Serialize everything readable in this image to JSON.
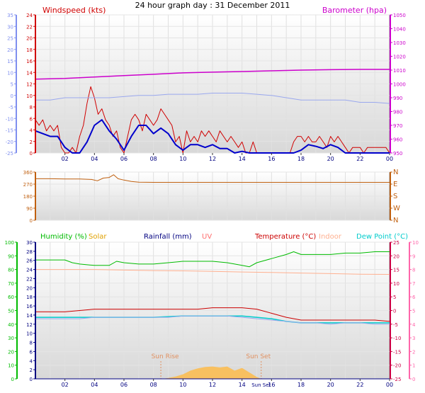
{
  "title": "24 hour graph day : 31 December 2011",
  "colors": {
    "windspeed": "#d00000",
    "wind_avg": "#0000cc",
    "barometer": "#cc00cc",
    "chill_axis": "#7f8fef",
    "chill_line": "#9aa8ee",
    "wind_dir": "#c06010",
    "humidity": "#00bb00",
    "solar": "#e0a000",
    "solar_fill": "#f8c060",
    "rainfall": "#000080",
    "uv": "#ff7070",
    "temperature": "#cc0000",
    "indoor": "#ffb090",
    "dew_point": "#00cccc",
    "temp_axis": "#cc0044",
    "uv_axis": "#ff66aa",
    "sun_marker": "#e09060"
  },
  "chart_data": [
    {
      "type": "line",
      "panel": "wind_pressure",
      "x_unit": "hour of day",
      "x_ticks": [
        "02",
        "04",
        "06",
        "08",
        "10",
        "12",
        "14",
        "16",
        "18",
        "20",
        "22",
        "00"
      ],
      "xlim": [
        0,
        24
      ],
      "left_axis": {
        "label": "Windspeed (kts)",
        "ticks": [
          "0",
          "2",
          "4",
          "6",
          "8",
          "10",
          "12",
          "14",
          "16",
          "18",
          "20",
          "22",
          "24"
        ],
        "ylim": [
          0,
          25
        ]
      },
      "left_outer_axis": {
        "ticks": [
          "-25",
          "-20",
          "-15",
          "-10",
          "-5",
          "0",
          "5",
          "10",
          "15",
          "20",
          "25",
          "30",
          "35"
        ],
        "ylim": [
          -25,
          35
        ]
      },
      "right_axis": {
        "label": "Barometer (hpa)",
        "ticks": [
          "950",
          "960",
          "970",
          "980",
          "990",
          "1000",
          "1010",
          "1020",
          "1030",
          "1040",
          "1050"
        ],
        "ylim": [
          950,
          1050
        ]
      },
      "grid": true,
      "series": [
        {
          "key": "gust",
          "axis": "left",
          "color_key": "windspeed",
          "x": [
            0,
            0.25,
            0.5,
            0.75,
            1,
            1.25,
            1.5,
            1.75,
            2,
            2.25,
            2.5,
            2.75,
            3,
            3.25,
            3.5,
            3.75,
            4,
            4.25,
            4.5,
            4.75,
            5,
            5.25,
            5.5,
            5.75,
            6,
            6.25,
            6.5,
            6.75,
            7,
            7.25,
            7.5,
            7.75,
            8,
            8.25,
            8.5,
            8.75,
            9,
            9.25,
            9.5,
            9.75,
            10,
            10.25,
            10.5,
            10.75,
            11,
            11.25,
            11.5,
            11.75,
            12,
            12.25,
            12.5,
            12.75,
            13,
            13.25,
            13.5,
            13.75,
            14,
            14.25,
            14.5,
            14.75,
            15,
            15.25,
            15.5,
            15.75,
            16,
            16.25,
            16.5,
            16.75,
            17,
            17.25,
            17.5,
            17.75,
            18,
            18.25,
            18.5,
            18.75,
            19,
            19.25,
            19.5,
            19.75,
            20,
            20.25,
            20.5,
            20.75,
            21,
            21.25,
            21.5,
            21.75,
            22,
            22.25,
            22.5,
            22.75,
            23,
            23.25,
            23.5,
            23.75,
            24
          ],
          "values": [
            6,
            5,
            6,
            4,
            5,
            4,
            5,
            1,
            0,
            0,
            1,
            0,
            3,
            5,
            9,
            12,
            10,
            7,
            8,
            6,
            5,
            3,
            4,
            1,
            0,
            3,
            6,
            7,
            6,
            4,
            7,
            6,
            5,
            6,
            8,
            7,
            6,
            5,
            2,
            3,
            0,
            4,
            2,
            3,
            2,
            4,
            3,
            4,
            3,
            2,
            4,
            3,
            2,
            3,
            2,
            1,
            2,
            0,
            0,
            2,
            0,
            0,
            0,
            0,
            0,
            0,
            0,
            0,
            0,
            0,
            2,
            3,
            3,
            2,
            3,
            2,
            2,
            3,
            2,
            1,
            3,
            2,
            3,
            2,
            1,
            0,
            1,
            1,
            1,
            0,
            1,
            1,
            1,
            1,
            1,
            1,
            0
          ]
        },
        {
          "key": "average",
          "axis": "left",
          "color_key": "wind_avg",
          "x": [
            0,
            0.5,
            1,
            1.5,
            2,
            2.5,
            3,
            3.5,
            4,
            4.5,
            5,
            5.5,
            6,
            6.5,
            7,
            7.5,
            8,
            8.5,
            9,
            9.5,
            10,
            10.5,
            11,
            11.5,
            12,
            12.5,
            13,
            13.5,
            14,
            14.5,
            15,
            15.5,
            16,
            16.5,
            17,
            17.5,
            18,
            18.5,
            19,
            19.5,
            20,
            20.5,
            21,
            21.5,
            22,
            22.5,
            23,
            23.5,
            24
          ],
          "values": [
            4,
            3.5,
            3,
            3,
            1,
            0,
            0,
            2,
            5,
            6,
            4,
            2.5,
            0.5,
            3,
            5,
            5,
            3.5,
            4.5,
            3.5,
            1.5,
            0.5,
            1.5,
            1.5,
            1,
            1.5,
            0.8,
            0.8,
            0,
            0.3,
            0,
            0,
            0,
            0,
            0,
            0,
            0,
            0.5,
            1.5,
            1.2,
            0.8,
            1.5,
            1,
            0,
            0,
            0,
            0,
            0,
            0,
            0
          ]
        },
        {
          "key": "barometer",
          "axis": "right",
          "color_key": "barometer",
          "x": [
            0,
            2,
            4,
            6,
            8,
            10,
            12,
            14,
            16,
            18,
            20,
            22,
            24
          ],
          "values": [
            1003.5,
            1004,
            1005,
            1006,
            1007,
            1008,
            1008.5,
            1009,
            1009.5,
            1010,
            1010.3,
            1010.5,
            1010.5
          ]
        },
        {
          "key": "wind_chill",
          "axis": "left_outer",
          "color_key": "chill_line",
          "x": [
            0,
            1,
            2,
            3,
            4,
            5,
            6,
            7,
            8,
            9,
            10,
            11,
            12,
            13,
            14,
            15,
            16,
            17,
            18,
            19,
            20,
            21,
            22,
            23,
            24
          ],
          "values": [
            -2,
            -2,
            -1,
            -1,
            -1,
            -1,
            -0.5,
            0,
            0,
            0.5,
            0.5,
            0.5,
            1,
            1,
            1,
            0.5,
            0,
            -1,
            -2,
            -2,
            -2,
            -2,
            -3,
            -3,
            -3.5
          ]
        }
      ]
    },
    {
      "type": "line",
      "panel": "wind_direction",
      "x_unit": "hour of day",
      "xlim": [
        0,
        24
      ],
      "left_axis": {
        "ticks": [
          "0",
          "90",
          "180",
          "270",
          "360"
        ],
        "ylim": [
          0,
          360
        ]
      },
      "right_axis": {
        "ticks": [
          "N",
          "W",
          "S",
          "E",
          "N"
        ]
      },
      "grid": true,
      "series": [
        {
          "key": "direction",
          "axis": "left",
          "color_key": "wind_dir",
          "x": [
            0,
            1,
            2,
            3,
            3.8,
            4.2,
            4.6,
            5,
            5.3,
            5.6,
            6,
            6.5,
            7,
            8,
            10,
            12,
            14,
            16,
            18,
            20,
            22,
            24
          ],
          "values": [
            310,
            310,
            308,
            308,
            305,
            295,
            315,
            320,
            340,
            310,
            300,
            290,
            285,
            283,
            283,
            283,
            283,
            283,
            283,
            283,
            283,
            283
          ]
        }
      ]
    },
    {
      "type": "line",
      "panel": "temperature_humidity",
      "x_unit": "hour of day",
      "x_ticks": [
        "02",
        "04",
        "06",
        "08",
        "10",
        "12",
        "14",
        "16",
        "18",
        "20",
        "22",
        "00"
      ],
      "xlim": [
        0,
        24
      ],
      "legend": [
        "Humidity (%)",
        "Solar",
        "Rainfall (mm)",
        "UV",
        "Temperature (°C)",
        "Indoor",
        "Dew Point (°C)"
      ],
      "humidity_axis": {
        "ticks": [
          "0",
          "10",
          "20",
          "30",
          "40",
          "50",
          "60",
          "70",
          "80",
          "90",
          "100"
        ],
        "ylim": [
          0,
          100
        ]
      },
      "rain_axis": {
        "ticks": [
          "0",
          "2",
          "4",
          "6",
          "8",
          "10",
          "12",
          "14",
          "16",
          "18",
          "20",
          "22",
          "24",
          "26",
          "28",
          "30"
        ],
        "ylim": [
          0,
          30
        ]
      },
      "temp_axis": {
        "ticks": [
          "-25",
          "-20",
          "-15",
          "-10",
          "-5",
          "0",
          "5",
          "10",
          "15",
          "20",
          "25"
        ],
        "ylim": [
          -25,
          25
        ]
      },
      "uv_axis": {
        "ticks": [
          "0",
          "1",
          "2",
          "3",
          "4",
          "5",
          "6",
          "7",
          "8",
          "9",
          "10"
        ],
        "ylim": [
          0,
          10
        ]
      },
      "annotations": [
        "Sun Rise",
        "Sun Set"
      ],
      "x_marker_labels": [
        "Sun Set"
      ],
      "sun_rise_hour": 8.5,
      "sun_set_hour": 15.3,
      "grid": true,
      "series": [
        {
          "key": "humidity",
          "axis": "humidity",
          "color_key": "humidity",
          "x": [
            0,
            1,
            2,
            2.5,
            3,
            4,
            5,
            5.5,
            6,
            7,
            8,
            9,
            10,
            11,
            12,
            13,
            14,
            14.5,
            15,
            16,
            17,
            17.5,
            18,
            19,
            20,
            21,
            22,
            23,
            24
          ],
          "values": [
            87,
            87,
            87,
            85,
            84,
            83,
            83,
            86,
            85,
            84,
            84,
            85,
            86,
            86,
            86,
            85,
            83,
            82,
            85,
            88,
            91,
            93,
            91,
            91,
            91,
            92,
            92,
            93,
            93
          ]
        },
        {
          "key": "temperature",
          "axis": "temp",
          "color_key": "temperature",
          "x": [
            0,
            1,
            2,
            3,
            4,
            5,
            6,
            7,
            8,
            9,
            10,
            11,
            12,
            13,
            14,
            15,
            16,
            17,
            18,
            19,
            20,
            21,
            22,
            23,
            24
          ],
          "values": [
            -0.5,
            -0.5,
            -0.5,
            0,
            0.5,
            0.5,
            0.5,
            0.5,
            0.5,
            0.5,
            0.5,
            0.5,
            1,
            1,
            1,
            0.5,
            -1,
            -2.5,
            -3.5,
            -3.5,
            -3.5,
            -3.5,
            -3.5,
            -3.5,
            -4
          ]
        },
        {
          "key": "dew_point",
          "axis": "temp",
          "color_key": "dew_point",
          "x": [
            0,
            2,
            4,
            6,
            8,
            10,
            12,
            14,
            15,
            16,
            17,
            18,
            19,
            20,
            21,
            22,
            23,
            24
          ],
          "values": [
            -2.5,
            -2.5,
            -2.5,
            -2.5,
            -2.5,
            -2,
            -2,
            -2,
            -2.5,
            -3,
            -4,
            -4.5,
            -4.5,
            -4.5,
            -4.5,
            -4.5,
            -4.5,
            -4.5
          ]
        },
        {
          "key": "indoor",
          "axis": "temp",
          "color_key": "indoor",
          "x": [
            0,
            2,
            4,
            6,
            8,
            10,
            12,
            14,
            16,
            18,
            20,
            22,
            24
          ],
          "values": [
            15,
            15,
            15,
            14.8,
            14.6,
            14.5,
            14.3,
            14.1,
            13.9,
            13.7,
            13.5,
            13.3,
            13.2
          ]
        },
        {
          "key": "wind_chill_lower",
          "axis": "temp",
          "color_key": "chill_line",
          "x": [
            0,
            1,
            2,
            3,
            4,
            5,
            6,
            7,
            8,
            9,
            10,
            11,
            12,
            13,
            14,
            15,
            16,
            17,
            18,
            19,
            20,
            21,
            22,
            23,
            24
          ],
          "values": [
            -3,
            -3,
            -3,
            -3,
            -2.5,
            -2.5,
            -2.5,
            -2.5,
            -2.5,
            -2.5,
            -2,
            -2,
            -2,
            -2,
            -2.5,
            -3,
            -3.5,
            -4,
            -4.5,
            -4.5,
            -5,
            -4.5,
            -4.5,
            -5,
            -5
          ]
        },
        {
          "key": "solar",
          "axis": "rain",
          "color_key": "solar_fill",
          "fill": true,
          "x": [
            8.6,
            9,
            9.5,
            10,
            10.5,
            11,
            11.5,
            12,
            12.5,
            13,
            13.5,
            14,
            14.5,
            15,
            15.3
          ],
          "values": [
            0,
            0.2,
            0.5,
            1.0,
            1.8,
            2.3,
            2.6,
            2.7,
            2.5,
            2.7,
            1.8,
            2.4,
            1.4,
            0.4,
            0
          ]
        },
        {
          "key": "rainfall",
          "axis": "rain",
          "color_key": "rainfall",
          "x": [
            0,
            24
          ],
          "values": [
            0,
            0
          ]
        }
      ]
    }
  ]
}
